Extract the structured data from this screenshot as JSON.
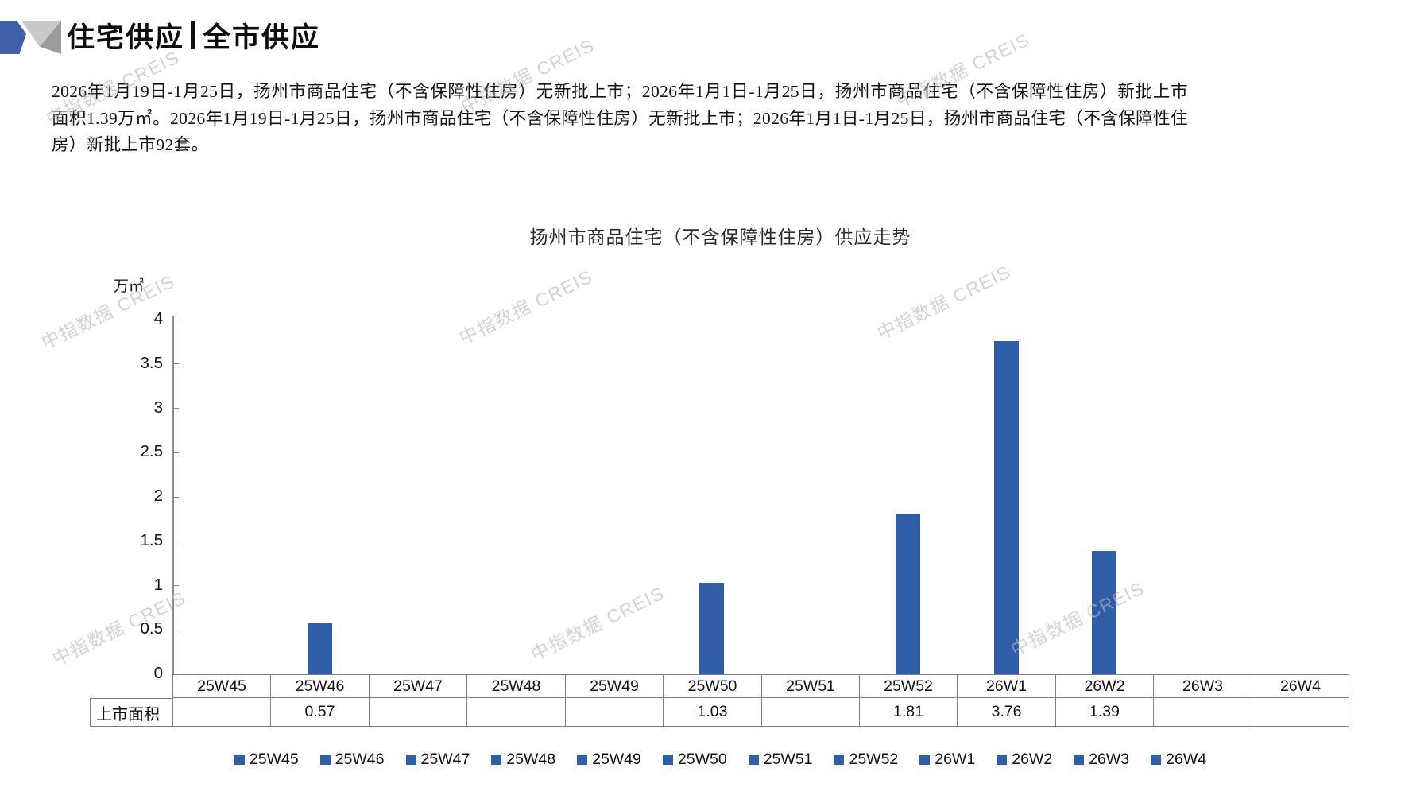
{
  "header": {
    "title_left": "住宅供应",
    "title_right": "全市供应"
  },
  "summary": "2026年1月19日-1月25日，扬州市商品住宅（不含保障性住房）无新批上市；2026年1月1日-1月25日，扬州市商品住宅（不含保障性住房）新批上市面积1.39万㎡。2026年1月19日-1月25日，扬州市商品住宅（不含保障性住房）无新批上市；2026年1月1日-1月25日，扬州市商品住宅（不含保障性住房）新批上市92套。",
  "watermark": {
    "text": "中指数据 CREIS",
    "color": "#b9b9b9"
  },
  "chart_data": {
    "type": "bar",
    "title": "扬州市商品住宅（不含保障性住房）供应走势",
    "unit_label": "万㎡",
    "xlabel": "",
    "ylabel": "万㎡",
    "categories": [
      "25W45",
      "25W46",
      "25W47",
      "25W48",
      "25W49",
      "25W50",
      "25W51",
      "25W52",
      "26W1",
      "26W2",
      "26W3",
      "26W4"
    ],
    "series": [
      {
        "name": "上市面积",
        "values": [
          null,
          0.57,
          null,
          null,
          null,
          1.03,
          null,
          1.81,
          3.76,
          1.39,
          null,
          null
        ]
      }
    ],
    "ylim": [
      0,
      4
    ],
    "yticks": [
      0,
      0.5,
      1,
      1.5,
      2,
      2.5,
      3,
      3.5,
      4
    ],
    "bar_color": "#2f5ea7",
    "grid": false,
    "legend_position": "bottom"
  },
  "table": {
    "row_label": "上市面积",
    "values_display": [
      "",
      "0.57",
      "",
      "",
      "",
      "1.03",
      "",
      "1.81",
      "3.76",
      "1.39",
      "",
      ""
    ]
  }
}
